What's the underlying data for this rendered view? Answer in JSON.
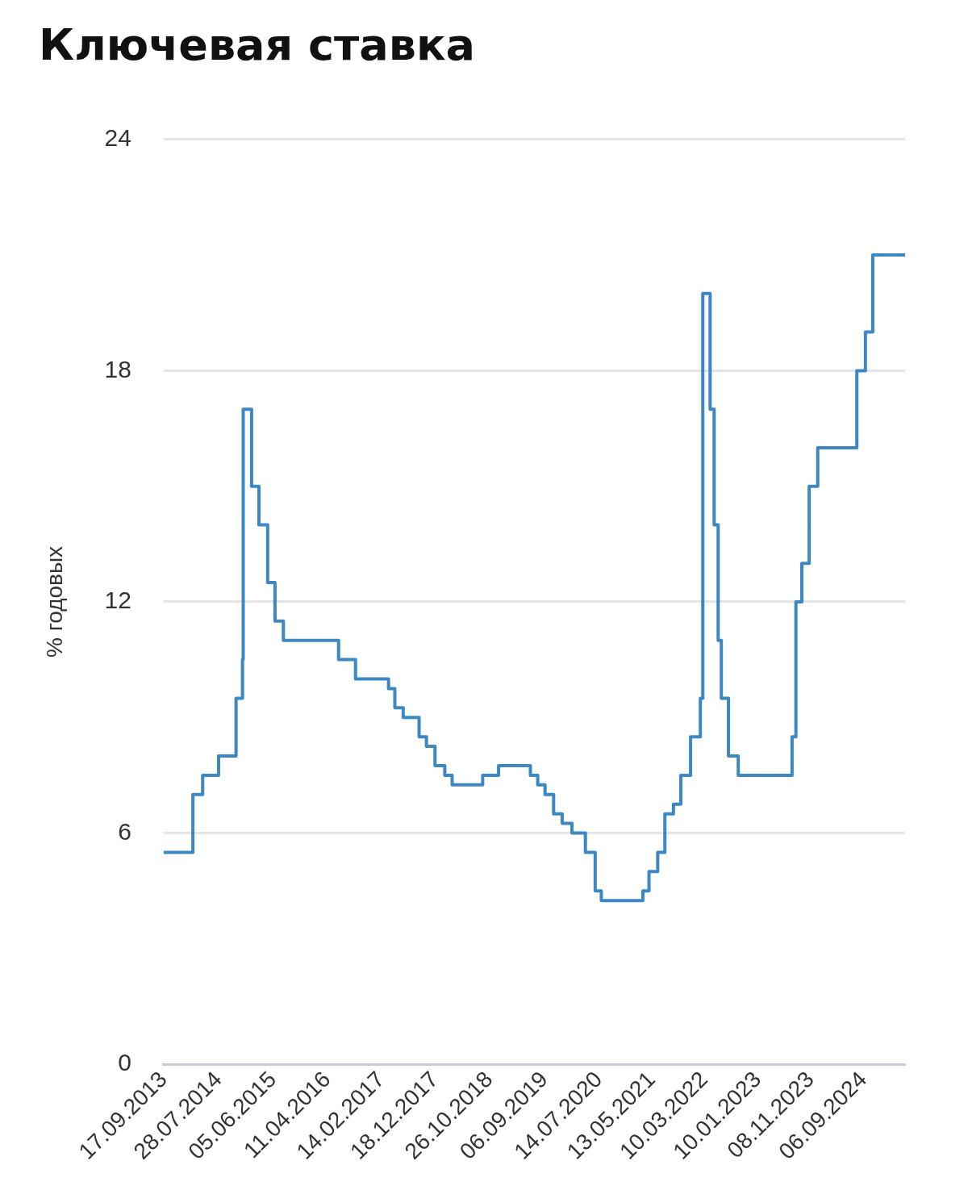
{
  "chart_data": {
    "type": "step",
    "title": "Ключевая ставка",
    "ylabel": "% годовых",
    "x": [
      "2013-09-17",
      "2014-03-03",
      "2014-04-28",
      "2014-07-28",
      "2014-11-05",
      "2014-12-12",
      "2014-12-16",
      "2015-02-02",
      "2015-03-16",
      "2015-05-05",
      "2015-06-16",
      "2015-08-03",
      "2016-06-14",
      "2016-09-19",
      "2017-03-27",
      "2017-05-02",
      "2017-06-19",
      "2017-09-18",
      "2017-10-30",
      "2017-12-18",
      "2018-02-12",
      "2018-03-26",
      "2018-09-17",
      "2018-12-17",
      "2019-06-17",
      "2019-07-29",
      "2019-09-09",
      "2019-10-28",
      "2019-12-16",
      "2020-02-10",
      "2020-04-27",
      "2020-06-22",
      "2020-07-27",
      "2021-03-22",
      "2021-04-26",
      "2021-06-15",
      "2021-07-26",
      "2021-09-13",
      "2021-10-25",
      "2021-12-20",
      "2022-02-14",
      "2022-02-28",
      "2022-04-11",
      "2022-05-04",
      "2022-05-27",
      "2022-06-14",
      "2022-07-25",
      "2022-09-19",
      "2023-07-24",
      "2023-08-15",
      "2023-09-18",
      "2023-10-30",
      "2023-12-18",
      "2024-07-29",
      "2024-09-16",
      "2024-10-28",
      "2025-05-01"
    ],
    "series": [
      {
        "color": "#3d87c2",
        "values": [
          5.5,
          7,
          7.5,
          8,
          9.5,
          10.5,
          17,
          15,
          14,
          12.5,
          11.5,
          11,
          10.5,
          10,
          9.75,
          9.25,
          9,
          8.5,
          8.25,
          7.75,
          7.5,
          7.25,
          7.5,
          7.75,
          7.5,
          7.25,
          7,
          6.5,
          6.25,
          6,
          5.5,
          4.5,
          4.25,
          4.5,
          5,
          5.5,
          6.5,
          6.75,
          7.5,
          8.5,
          9.5,
          20,
          17,
          14,
          11,
          9.5,
          8,
          7.5,
          8.5,
          12,
          13,
          15,
          16,
          18,
          19,
          21,
          21
        ]
      }
    ],
    "xlim": [
      "2013-09-17",
      "2025-05-01"
    ],
    "xticks": [
      {
        "value": "2013-09-17",
        "label": "17.09.2013"
      },
      {
        "value": "2014-07-28",
        "label": "28.07.2014"
      },
      {
        "value": "2015-06-05",
        "label": "05.06.2015"
      },
      {
        "value": "2016-04-11",
        "label": "11.04.2016"
      },
      {
        "value": "2017-02-14",
        "label": "14.02.2017"
      },
      {
        "value": "2017-12-18",
        "label": "18.12.2017"
      },
      {
        "value": "2018-10-26",
        "label": "26.10.2018"
      },
      {
        "value": "2019-09-06",
        "label": "06.09.2019"
      },
      {
        "value": "2020-07-14",
        "label": "14.07.2020"
      },
      {
        "value": "2021-05-13",
        "label": "13.05.2021"
      },
      {
        "value": "2022-03-10",
        "label": "10.03.2022"
      },
      {
        "value": "2023-01-10",
        "label": "10.01.2023"
      },
      {
        "value": "2023-11-08",
        "label": "08.11.2023"
      },
      {
        "value": "2024-09-06",
        "label": "06.09.2024"
      }
    ],
    "ylim": [
      0,
      24
    ],
    "yticks": [
      0,
      6,
      12,
      18,
      24
    ],
    "grid": "y",
    "legend": false,
    "line_style": "solid",
    "marker": "none"
  }
}
